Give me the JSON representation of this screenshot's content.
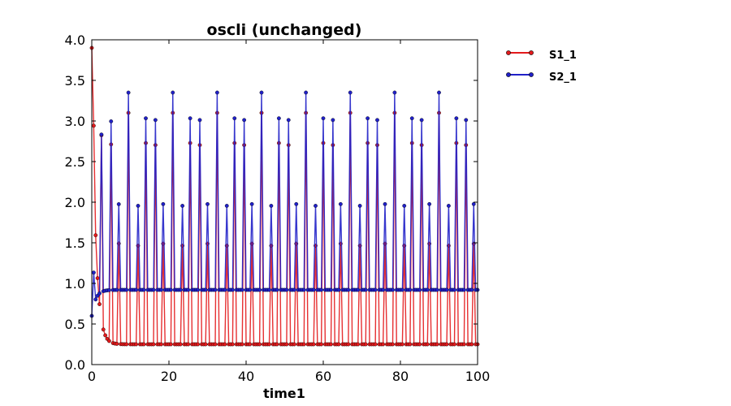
{
  "chart_data": {
    "type": "line",
    "title": "oscli  (unchanged)",
    "xlabel": "time1",
    "ylabel": "",
    "xlim": [
      0,
      100
    ],
    "ylim": [
      0,
      4
    ],
    "xticks": [
      0,
      20,
      40,
      60,
      80,
      100
    ],
    "yticks": [
      0,
      0.5,
      1,
      1.5,
      2,
      2.5,
      3,
      3.5,
      4
    ],
    "xtick_labels": [
      "0",
      "20",
      "40",
      "60",
      "80",
      "100"
    ],
    "ytick_labels": [
      "0.0",
      "0.5",
      "1.0",
      "1.5",
      "2.0",
      "2.5",
      "3.0",
      "3.5",
      "4.0"
    ],
    "grid": false,
    "legend_position": "outside-right-top",
    "markers": true,
    "sample_interval": 0.5,
    "series": [
      {
        "name": "S1_1",
        "color": "#e31a1c",
        "description": "oscillates between about 0.25 and 3.1 with period about 2.3; starts near 3.9",
        "initial_value": 3.9,
        "period": 2.3,
        "min": 0.25,
        "max": 3.1
      },
      {
        "name": "S2_1",
        "color": "#2020c8",
        "description": "oscillates between about 0.92 and 3.35 with period about 2.3; starts near 0.6",
        "initial_value": 0.6,
        "period": 2.3,
        "min": 0.92,
        "max": 3.35
      }
    ]
  }
}
